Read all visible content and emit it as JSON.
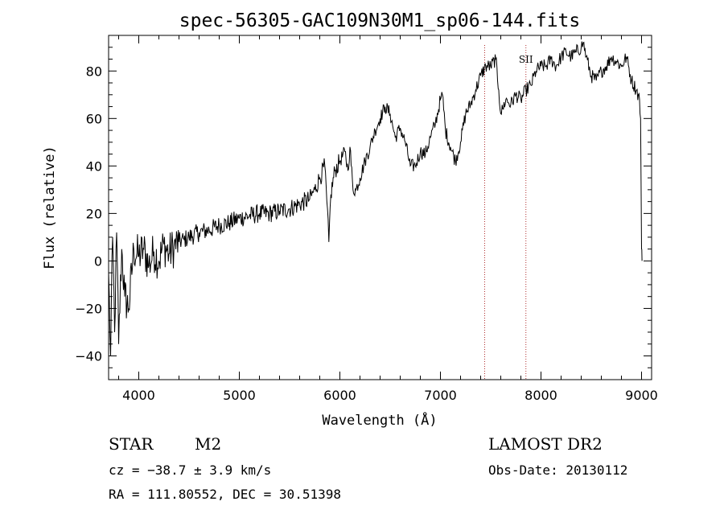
{
  "chart_data": {
    "type": "line",
    "title": "spec-56305-GAC109N30M1_sp06-144.fits",
    "xlabel": "Wavelength (Å)",
    "ylabel": "Flux (relative)",
    "xlim": [
      3700,
      9100
    ],
    "ylim": [
      -50,
      95
    ],
    "x_ticks": [
      4000,
      5000,
      6000,
      7000,
      8000,
      9000
    ],
    "y_ticks": [
      -40,
      -20,
      0,
      20,
      40,
      60,
      80
    ],
    "grid": false,
    "series": [
      {
        "color": "#000000",
        "x": [
          3700,
          3720,
          3740,
          3760,
          3780,
          3800,
          3830,
          3860,
          3900,
          3950,
          4000,
          4050,
          4100,
          4150,
          4200,
          4250,
          4300,
          4350,
          4400,
          4450,
          4500,
          4600,
          4700,
          4800,
          4900,
          5000,
          5100,
          5200,
          5300,
          5400,
          5500,
          5600,
          5700,
          5750,
          5800,
          5850,
          5870,
          5890,
          5910,
          5950,
          6000,
          6050,
          6080,
          6100,
          6130,
          6160,
          6200,
          6250,
          6300,
          6350,
          6400,
          6450,
          6500,
          6550,
          6600,
          6650,
          6700,
          6750,
          6800,
          6850,
          6900,
          6950,
          7000,
          7020,
          7050,
          7100,
          7150,
          7200,
          7250,
          7300,
          7350,
          7400,
          7450,
          7500,
          7550,
          7580,
          7600,
          7620,
          7650,
          7700,
          7750,
          7800,
          7850,
          7900,
          7950,
          8000,
          8050,
          8100,
          8150,
          8200,
          8250,
          8300,
          8350,
          8400,
          8420,
          8450,
          8500,
          8550,
          8600,
          8650,
          8700,
          8750,
          8800,
          8850,
          8900,
          8950,
          8980,
          8990,
          9000,
          9005
        ],
        "y": [
          -5,
          -40,
          10,
          -30,
          12,
          -35,
          5,
          -15,
          -20,
          5,
          2,
          5,
          -2,
          4,
          0,
          7,
          3,
          6,
          8,
          9,
          10,
          12,
          13,
          15,
          16,
          18,
          19,
          20,
          20,
          21,
          22,
          24,
          26,
          30,
          35,
          40,
          25,
          8,
          28,
          38,
          42,
          46,
          38,
          48,
          30,
          30,
          35,
          42,
          48,
          55,
          60,
          65,
          62,
          52,
          56,
          50,
          40,
          40,
          46,
          45,
          52,
          58,
          68,
          70,
          55,
          48,
          42,
          50,
          62,
          66,
          72,
          78,
          82,
          82,
          85,
          72,
          62,
          64,
          68,
          66,
          70,
          68,
          72,
          74,
          80,
          82,
          82,
          85,
          82,
          86,
          88,
          86,
          88,
          90,
          92,
          86,
          78,
          76,
          80,
          82,
          86,
          84,
          82,
          86,
          76,
          72,
          68,
          60,
          5,
          0
        ]
      }
    ],
    "annotations": [
      {
        "x": 7440,
        "label": ""
      },
      {
        "x": 7850,
        "label": "SII"
      }
    ]
  },
  "info": {
    "class_label": "STAR",
    "subclass": "M2",
    "survey": "LAMOST DR2",
    "cz": "cz = −38.7 ± 3.9 km/s",
    "obs_date": "Obs-Date: 20130112",
    "radec": "RA = 111.80552, DEC =  30.51398"
  }
}
